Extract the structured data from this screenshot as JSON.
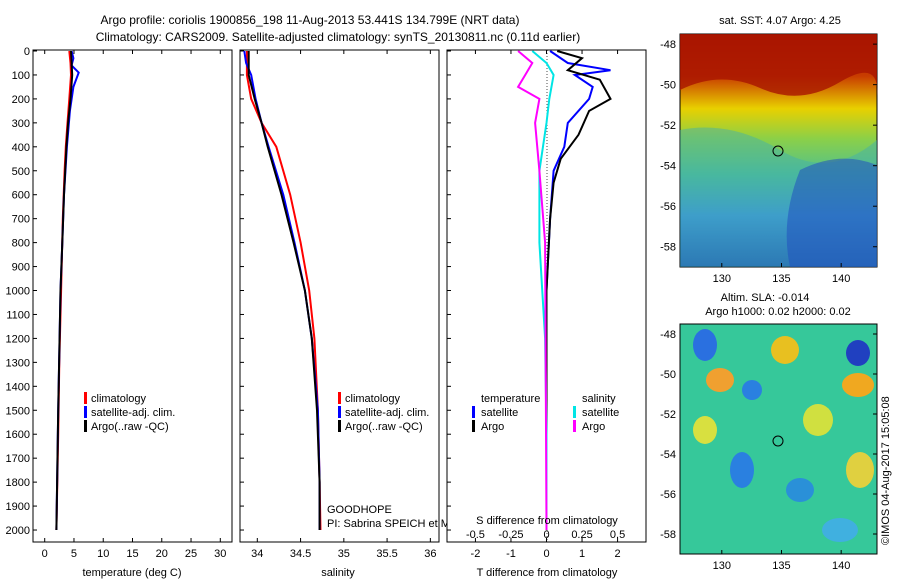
{
  "title": {
    "line1": "Argo profile: coriolis 1900856_198 11-Aug-2013 53.441S 134.799E (NRT data)",
    "line2": "Climatology: CARS2009. Satellite-adjusted climatology: synTS_20130811.nc (0.11d earlier)"
  },
  "colors": {
    "climatology": "#ff0000",
    "satellite": "#0000ff",
    "argo": "#000000",
    "sal_sat": "#00e5e5",
    "sal_argo": "#ff00ff"
  },
  "chart_data": [
    {
      "type": "line",
      "id": "temperature",
      "xlabel": "temperature (deg C)",
      "ylabel": "",
      "xlim": [
        -2,
        32
      ],
      "ylim": [
        2050,
        0
      ],
      "xticks": [
        "0",
        "5",
        "10",
        "15",
        "20",
        "25",
        "30"
      ],
      "yticks": [
        "0",
        "100",
        "200",
        "300",
        "400",
        "500",
        "600",
        "700",
        "800",
        "900",
        "1000",
        "1100",
        "1200",
        "1300",
        "1400",
        "1500",
        "1600",
        "1700",
        "1800",
        "1900",
        "2000"
      ],
      "legend": [
        "climatology",
        "satellite-adj. clim.",
        "Argo(..raw -QC)"
      ],
      "series": [
        {
          "name": "climatology",
          "depth": [
            0,
            50,
            100,
            200,
            300,
            400,
            500,
            700,
            1000,
            1300,
            1600,
            2000
          ],
          "values": [
            4.2,
            4.4,
            4.5,
            4.2,
            3.9,
            3.6,
            3.4,
            3.1,
            2.8,
            2.5,
            2.3,
            2.0
          ]
        },
        {
          "name": "satellite-adj. clim.",
          "depth": [
            0,
            30,
            60,
            90,
            150,
            250,
            400,
            600,
            800,
            1000,
            1500,
            2000
          ],
          "values": [
            4.6,
            4.9,
            4.6,
            5.8,
            4.9,
            4.3,
            3.8,
            3.3,
            3.0,
            2.7,
            2.3,
            2.0
          ]
        },
        {
          "name": "Argo(..raw -QC)",
          "depth": [
            0,
            50,
            100,
            200,
            300,
            400,
            600,
            800,
            1000,
            1500,
            2000
          ],
          "values": [
            4.5,
            4.6,
            4.7,
            4.4,
            4.0,
            3.7,
            3.3,
            3.0,
            2.7,
            2.3,
            2.0
          ]
        }
      ]
    },
    {
      "type": "line",
      "id": "salinity",
      "xlabel": "salinity",
      "ylabel": "",
      "xlim": [
        33.8,
        36.1
      ],
      "ylim": [
        2050,
        0
      ],
      "xticks": [
        "34",
        "34.5",
        "35",
        "35.5",
        "36"
      ],
      "legend": [
        "climatology",
        "satellite-adj. clim.",
        "Argo(..raw -QC)"
      ],
      "annotation": [
        "GOODHOPE",
        "PI: Sabrina SPEICH et Michel ARHAN"
      ],
      "series": [
        {
          "name": "climatology",
          "depth": [
            0,
            100,
            200,
            300,
            400,
            600,
            800,
            1000,
            1200,
            1500,
            1800,
            2000
          ],
          "values": [
            33.88,
            33.88,
            33.93,
            34.05,
            34.22,
            34.38,
            34.5,
            34.6,
            34.66,
            34.7,
            34.72,
            34.73
          ]
        },
        {
          "name": "satellite-adj. clim.",
          "depth": [
            0,
            50,
            100,
            200,
            300,
            400,
            600,
            800,
            1000,
            1200,
            1500,
            1800,
            2000
          ],
          "values": [
            33.85,
            33.87,
            33.93,
            33.98,
            34.05,
            34.13,
            34.3,
            34.43,
            34.55,
            34.63,
            34.7,
            34.72,
            34.72
          ]
        },
        {
          "name": "Argo(..raw -QC)",
          "depth": [
            0,
            100,
            200,
            300,
            400,
            600,
            800,
            1000,
            1200,
            1500,
            1800,
            2000
          ],
          "values": [
            33.9,
            33.9,
            33.97,
            34.05,
            34.12,
            34.28,
            34.42,
            34.55,
            34.63,
            34.69,
            34.72,
            34.72
          ]
        }
      ]
    },
    {
      "type": "line",
      "id": "difference",
      "xlabel": "T difference from climatology",
      "title_inner": "S difference from climatology",
      "xlim": [
        -2.8,
        2.8
      ],
      "ylim": [
        2050,
        0
      ],
      "xticks": [
        "-2",
        "-1",
        "0",
        "1",
        "2"
      ],
      "xticks_top": [
        "-0.5",
        "-0.25",
        "0",
        "0.25",
        "0.5"
      ],
      "legend_titles": [
        "temperature",
        "salinity"
      ],
      "legend": [
        "satellite",
        "Argo",
        "satellite",
        "Argo"
      ],
      "series": [
        {
          "name": "temperature satellite",
          "depth": [
            0,
            50,
            80,
            100,
            150,
            200,
            300,
            400,
            500,
            700,
            1000,
            1500,
            2000
          ],
          "values": [
            0.1,
            0.6,
            1.8,
            0.8,
            1.3,
            1.2,
            0.6,
            0.5,
            0.2,
            0.1,
            0,
            0,
            0
          ]
        },
        {
          "name": "temperature Argo",
          "depth": [
            0,
            30,
            80,
            120,
            200,
            250,
            350,
            450,
            550,
            700,
            1000,
            1500,
            2000
          ],
          "values": [
            0.3,
            1.0,
            0.6,
            1.5,
            1.8,
            1.2,
            0.9,
            0.4,
            0.2,
            0.1,
            0,
            0,
            0
          ]
        },
        {
          "name": "salinity satellite",
          "depth": [
            0,
            50,
            100,
            200,
            300,
            500,
            800,
            1200,
            1600,
            2000
          ],
          "values": [
            -0.1,
            0.0,
            0.05,
            0.02,
            0.0,
            -0.05,
            -0.05,
            -0.01,
            0,
            0
          ]
        },
        {
          "name": "salinity Argo",
          "depth": [
            0,
            50,
            100,
            150,
            200,
            300,
            500,
            800,
            2000
          ],
          "values": [
            -0.2,
            -0.1,
            -0.15,
            -0.2,
            -0.05,
            -0.08,
            -0.05,
            -0.01,
            0
          ]
        }
      ]
    }
  ],
  "maps": {
    "sst": {
      "title": "sat. SST: 4.07  Argo: 4.25",
      "lat_ticks": [
        "-48",
        "-50",
        "-52",
        "-54",
        "-56",
        "-58"
      ],
      "lon_ticks": [
        "130",
        "135",
        "140"
      ],
      "marker": {
        "lon": 134.799,
        "lat": -53.441
      }
    },
    "sla": {
      "title1": "Altim. SLA: -0.014",
      "title2": "Argo h1000: 0.02  h2000: 0.02",
      "lat_ticks": [
        "-48",
        "-50",
        "-52",
        "-54",
        "-56",
        "-58"
      ],
      "lon_ticks": [
        "130",
        "135",
        "140"
      ],
      "marker": {
        "lon": 134.799,
        "lat": -53.441
      }
    }
  },
  "watermark": "©IMOS 04-Aug-2017 15:05:08"
}
